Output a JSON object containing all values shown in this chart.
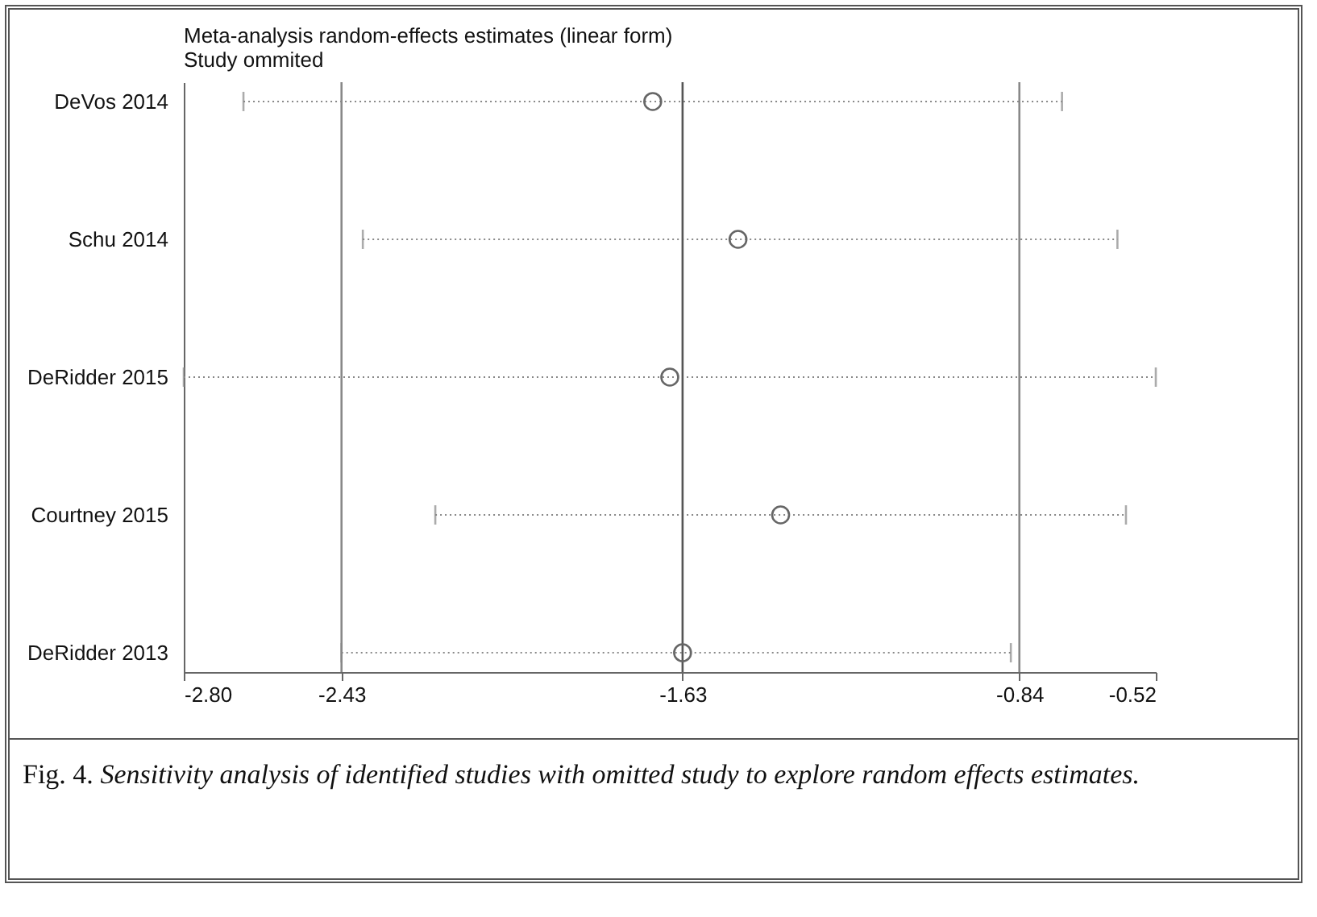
{
  "chart_data": {
    "type": "scatter",
    "orientation": "horizontal",
    "title": "Meta-analysis random-effects estimates (linear form)",
    "subtitle": "Study ommited",
    "categories": [
      "DeVos 2014",
      "Schu 2014",
      "DeRidder 2015",
      "Courtney 2015",
      "DeRidder 2013"
    ],
    "values": [
      -1.7,
      -1.5,
      -1.66,
      -1.4,
      -1.63
    ],
    "errors": [
      [
        -2.66,
        -0.74
      ],
      [
        -2.38,
        -0.61
      ],
      [
        -2.8,
        -0.52
      ],
      [
        -2.21,
        -0.59
      ],
      [
        -2.43,
        -0.86
      ]
    ],
    "color": "#666666",
    "marker": "circle",
    "line_style": "dotted",
    "xlim": [
      -2.8,
      -0.52
    ],
    "xticks": [
      {
        "value": -2.8,
        "label": "-2.80"
      },
      -2.43,
      -1.63,
      -0.84,
      -0.52
    ],
    "ref_lines": [
      {
        "axis": "x",
        "value": -2.43,
        "color": "#888888"
      },
      {
        "axis": "x",
        "value": -1.63,
        "color": "#555555"
      },
      {
        "axis": "x",
        "value": -0.84,
        "color": "#888888"
      }
    ],
    "annotations": [
      "Fig. 4. Sensitivity analysis of  identified studies with omitted study to explore random effects estimates."
    ]
  }
}
